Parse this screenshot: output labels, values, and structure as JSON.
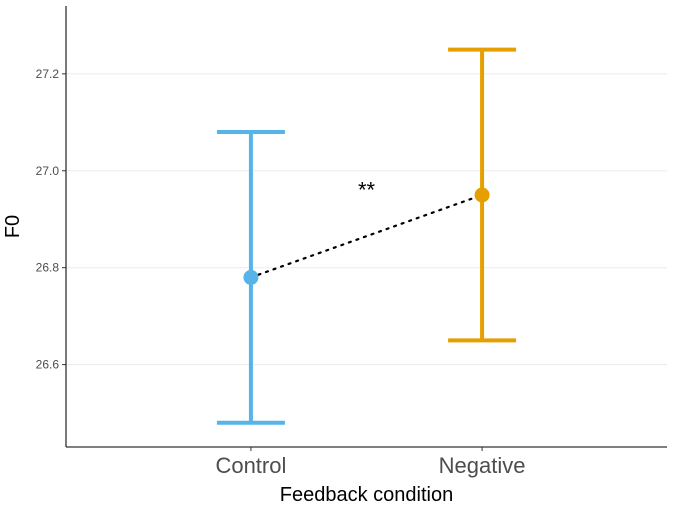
{
  "chart_data": {
    "type": "scatter",
    "subtype": "point-with-errorbars",
    "title": "",
    "xlabel": "Feedback condition",
    "ylabel": "F0",
    "categories": [
      "Control",
      "Negative"
    ],
    "ylim": [
      26.43,
      27.34
    ],
    "yticks": [
      {
        "value": 26.6,
        "label": "26.6"
      },
      {
        "value": 26.8,
        "label": "26.8"
      },
      {
        "value": 27.0,
        "label": "27.0"
      },
      {
        "value": 27.2,
        "label": "27.2"
      }
    ],
    "grid": "horizontal-major",
    "points": [
      {
        "category": "Control",
        "y": 26.78,
        "lower": 26.48,
        "upper": 27.08,
        "color": "#56B4E9"
      },
      {
        "category": "Negative",
        "y": 26.95,
        "lower": 26.65,
        "upper": 27.25,
        "color": "#E69F00"
      }
    ],
    "connector": {
      "from": "Control",
      "to": "Negative",
      "style": "dotted",
      "color": "#000000"
    },
    "annotation": {
      "text": "**",
      "category_position": 1.5,
      "y": 26.965
    }
  }
}
